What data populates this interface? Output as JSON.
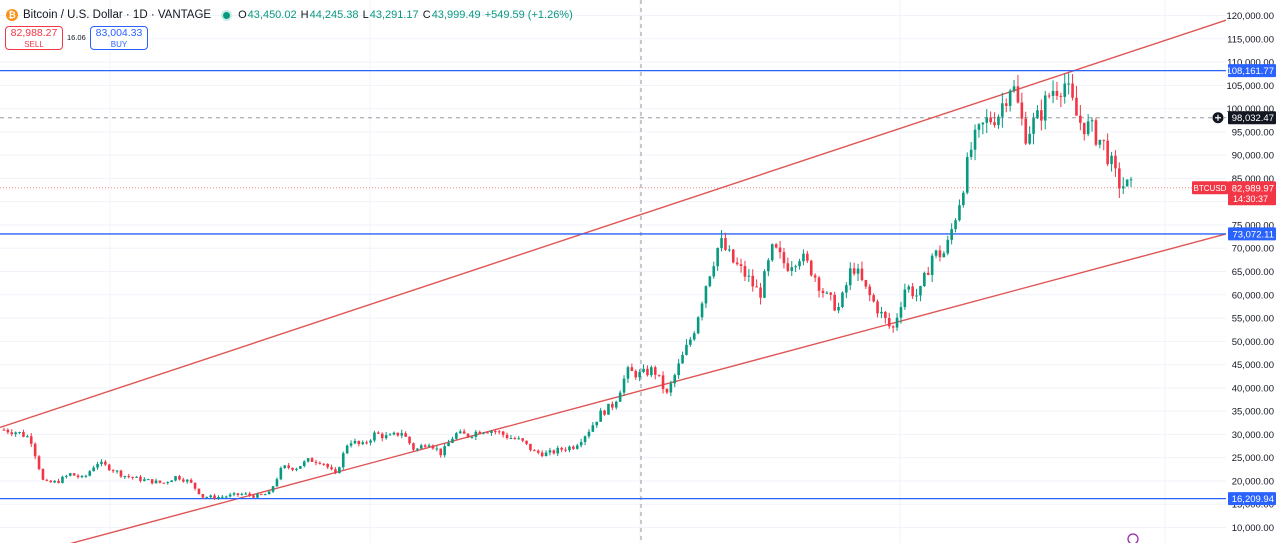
{
  "header": {
    "symbol": "Bitcoin / U.S. Dollar · 1D · VANTAGE",
    "coin_glyph": "₿",
    "o_label": "O",
    "o_value": "43,450.02",
    "h_label": "H",
    "h_value": "44,245.38",
    "l_label": "L",
    "l_value": "43,291.17",
    "c_label": "C",
    "c_value": "43,999.49",
    "change": "+549.59 (+1.26%)"
  },
  "trade": {
    "sell_price": "82,988.27",
    "sell_label": "SELL",
    "spread": "16.06",
    "buy_price": "83,004.33",
    "buy_label": "BUY"
  },
  "colors": {
    "up": "#089981",
    "down": "#f23645",
    "channel": "#e05656",
    "level": "#2962ff",
    "price_badge": "#f23645"
  },
  "chart_data": {
    "type": "candlestick",
    "title": "Bitcoin / U.S. Dollar · 1D · VANTAGE",
    "ylim": [
      10000,
      120000
    ],
    "y_ticks": [
      "120,000.00",
      "115,000.00",
      "110,000.00",
      "105,000.00",
      "100,000.00",
      "95,000.00",
      "90,000.00",
      "85,000.00",
      "75,000.00",
      "70,000.00",
      "65,000.00",
      "60,000.00",
      "55,000.00",
      "50,000.00",
      "45,000.00",
      "40,000.00",
      "35,000.00",
      "30,000.00",
      "25,000.00",
      "20,000.00",
      "15,000.00",
      "10,000.00"
    ],
    "horizontal_levels": [
      {
        "value": 108161.77,
        "label": "108,161.77"
      },
      {
        "value": 73072.11,
        "label": "73,072.11"
      },
      {
        "value": 16209.94,
        "label": "16,209.94"
      }
    ],
    "crosshair": {
      "value": 98032.47,
      "label": "98,032.47"
    },
    "current_price": {
      "symbol": "BTCUSD",
      "value": 82989.97,
      "label": "82,989.97",
      "countdown": "14:30:37"
    },
    "channel": {
      "upper_start": 31500,
      "upper_end": 119000,
      "lower_start": 2500,
      "lower_end": 73072.11
    },
    "close_path": [
      31000,
      30500,
      29200,
      19500,
      19800,
      21500,
      20500,
      24000,
      22800,
      21200,
      20500,
      20000,
      19500,
      21000,
      19800,
      16600,
      16500,
      16800,
      17200,
      16700,
      17300,
      23000,
      22800,
      24500,
      24200,
      21200,
      28800,
      27500,
      30200,
      29300,
      30500,
      26500,
      28500,
      25800,
      30100,
      29800,
      31000,
      30800,
      29500,
      28600,
      26200,
      25800,
      26800,
      27500,
      30500,
      34500,
      36500,
      43500,
      42800,
      44000,
      38500,
      45500,
      52000,
      63000,
      71500,
      67000,
      64000,
      60000,
      70000,
      66200,
      68500,
      65000,
      59500,
      57000,
      66500,
      61000,
      56500,
      52200,
      62000,
      59500,
      68500,
      69000,
      79500,
      92000,
      97000,
      99000,
      106000,
      94500,
      98000,
      104000,
      105500,
      97500,
      95500,
      92000,
      84000,
      83000
    ]
  }
}
